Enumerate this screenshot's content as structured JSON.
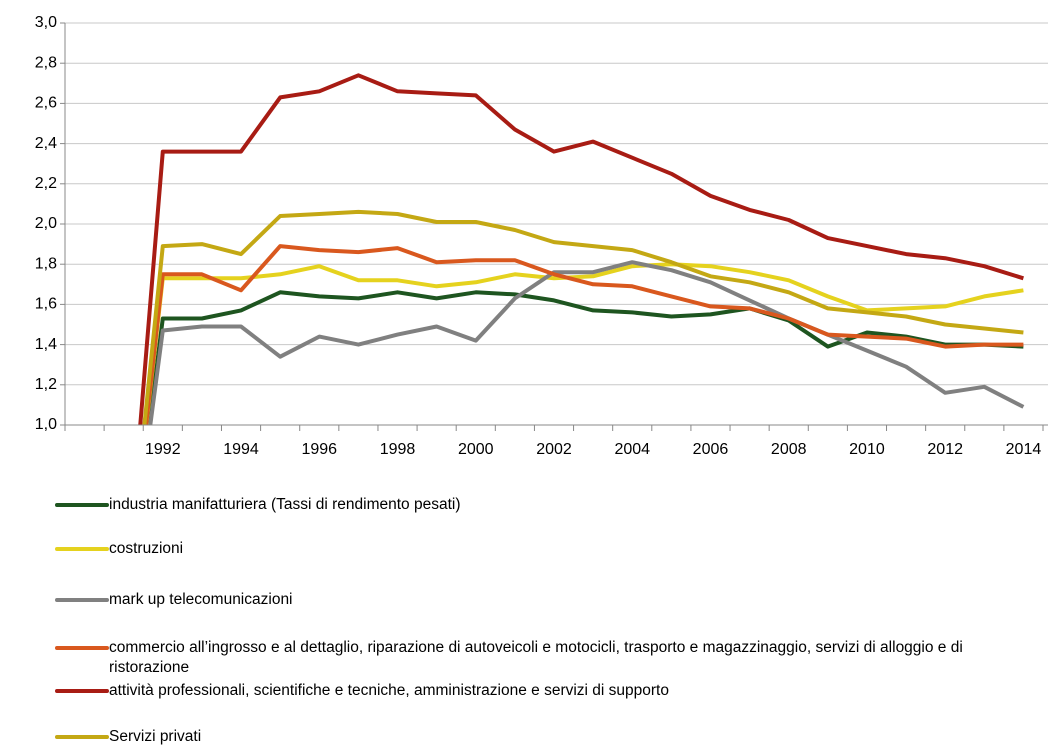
{
  "chart_data": {
    "type": "line",
    "categories": [
      null,
      null,
      "1992",
      null,
      "1994",
      null,
      "1996",
      null,
      "1998",
      null,
      "2000",
      null,
      "2002",
      null,
      "2004",
      null,
      "2006",
      null,
      "2008",
      null,
      "2010",
      null,
      "2012",
      null,
      "2014"
    ],
    "ylim": [
      1,
      3
    ],
    "yticks": [
      {
        "value": 1,
        "label": "1,0"
      },
      {
        "value": 1.2,
        "label": "1,2"
      },
      {
        "value": 1.4,
        "label": "1,4"
      },
      {
        "value": 1.6,
        "label": "1,6"
      },
      {
        "value": 1.8,
        "label": "1,8"
      },
      {
        "value": 2,
        "label": "2,0"
      },
      {
        "value": 2.2,
        "label": "2,2"
      },
      {
        "value": 2.4,
        "label": "2,4"
      },
      {
        "value": 2.6,
        "label": "2,6"
      },
      {
        "value": 2.8,
        "label": "2,8"
      },
      {
        "value": 3,
        "label": "3,0"
      }
    ],
    "grid": true,
    "series": [
      {
        "name": "industria manifatturiera (Tassi di rendimento pesati)",
        "color": "#1e5520",
        "values": [
          null,
          0,
          1.53,
          1.53,
          1.57,
          1.66,
          1.64,
          1.63,
          1.66,
          1.63,
          1.66,
          1.65,
          1.62,
          1.57,
          1.56,
          1.54,
          1.55,
          1.58,
          1.52,
          1.39,
          1.46,
          1.44,
          1.4,
          1.4,
          1.39
        ]
      },
      {
        "name": "costruzioni",
        "color": "#e5d21e",
        "values": [
          null,
          0,
          1.73,
          1.73,
          1.73,
          1.75,
          1.79,
          1.72,
          1.72,
          1.69,
          1.71,
          1.75,
          1.73,
          1.74,
          1.79,
          1.8,
          1.79,
          1.76,
          1.72,
          1.64,
          1.57,
          1.58,
          1.59,
          1.64,
          1.67
        ]
      },
      {
        "name": "mark up telecomunicazioni",
        "color": "#808080",
        "values": [
          null,
          0,
          1.47,
          1.49,
          1.49,
          1.34,
          1.44,
          1.4,
          1.45,
          1.49,
          1.42,
          1.63,
          1.76,
          1.76,
          1.81,
          1.77,
          1.71,
          1.62,
          1.53,
          1.45,
          1.37,
          1.29,
          1.16,
          1.19,
          1.09
        ]
      },
      {
        "name": "commercio all’ingrosso e al dettaglio, riparazione di autoveicoli e motocicli, trasporto e magazzinaggio, servizi di alloggio e di ristorazione",
        "color": "#d9581e",
        "values": [
          null,
          0,
          1.75,
          1.75,
          1.67,
          1.89,
          1.87,
          1.86,
          1.88,
          1.81,
          1.82,
          1.82,
          1.75,
          1.7,
          1.69,
          1.64,
          1.59,
          1.58,
          1.53,
          1.45,
          1.44,
          1.43,
          1.39,
          1.4,
          1.4
        ]
      },
      {
        "name": "attività professionali, scientifiche e tecniche, amministrazione e servizi di supporto",
        "color": "#a81c14",
        "values": [
          null,
          0,
          2.36,
          2.36,
          2.36,
          2.63,
          2.66,
          2.74,
          2.66,
          2.65,
          2.64,
          2.47,
          2.36,
          2.41,
          2.33,
          2.25,
          2.14,
          2.07,
          2.02,
          1.93,
          1.89,
          1.85,
          1.83,
          1.79,
          1.73
        ]
      },
      {
        "name": "Servizi privati",
        "color": "#c4a814",
        "values": [
          null,
          0,
          1.89,
          1.9,
          1.85,
          2.04,
          2.05,
          2.06,
          2.05,
          2.01,
          2.01,
          1.97,
          1.91,
          1.89,
          1.87,
          1.81,
          1.74,
          1.71,
          1.66,
          1.58,
          1.56,
          1.54,
          1.5,
          1.48,
          1.46
        ]
      }
    ]
  }
}
